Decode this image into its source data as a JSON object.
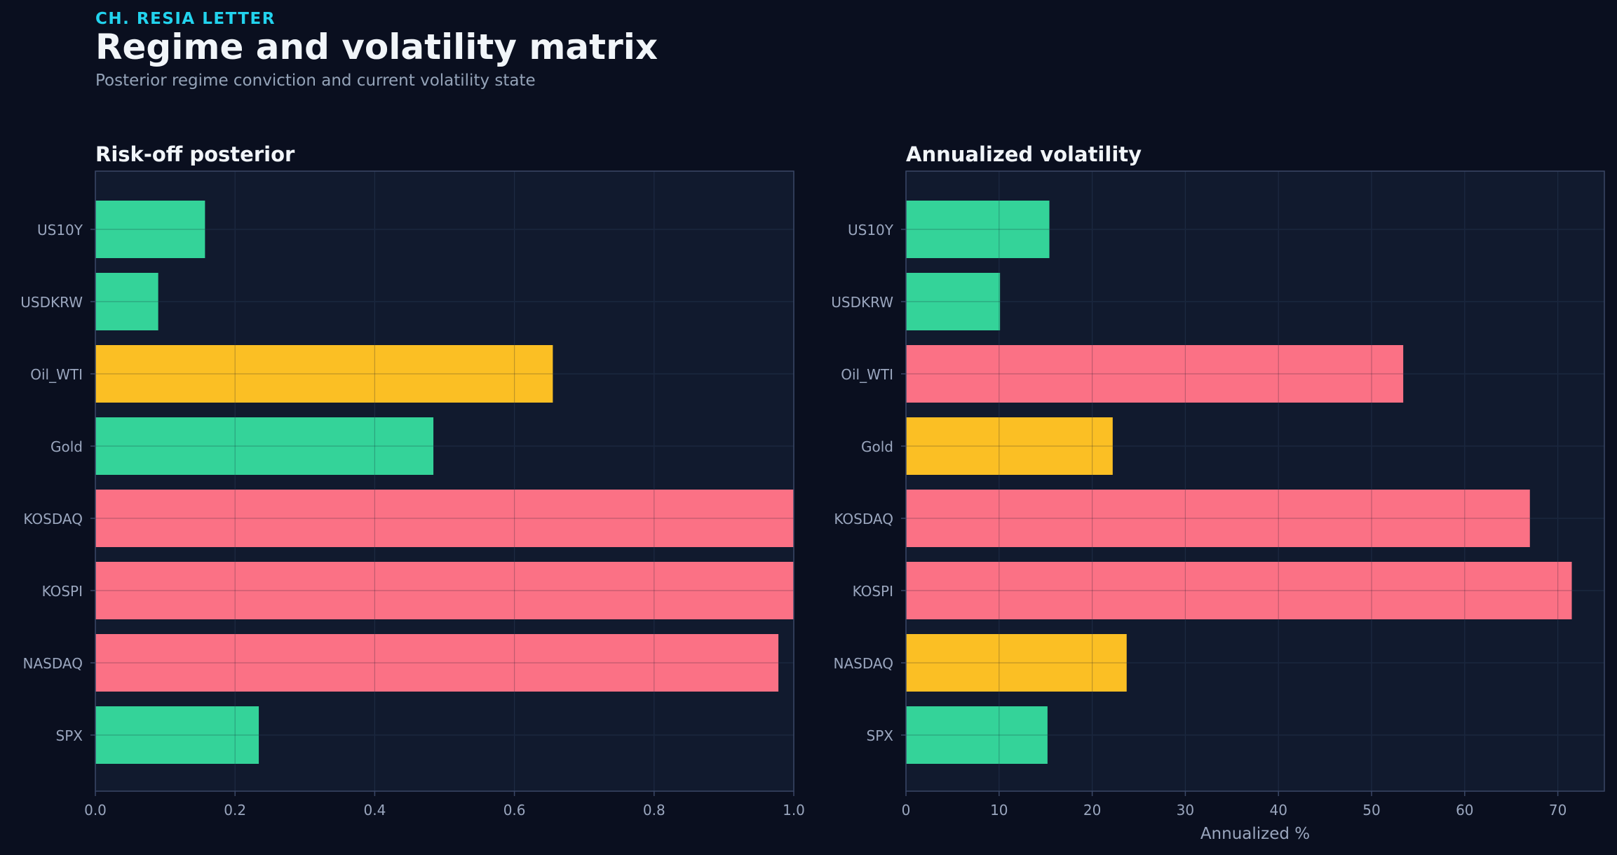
{
  "header": {
    "kicker": "CH. RESIA LETTER",
    "title": "Regime and volatility matrix",
    "subtitle": "Posterior regime conviction and current volatility state"
  },
  "colors": {
    "background": "#0a0f1f",
    "panel": "#111a2e",
    "grid": "#22304a",
    "spine": "#3a4766",
    "tick_text": "#9aa6be",
    "title_text": "#f1f5f9",
    "green": "#34d399",
    "yellow": "#fbbf24",
    "red": "#fb7185"
  },
  "chart_data": [
    {
      "type": "bar",
      "orientation": "horizontal",
      "title": "Risk-off posterior",
      "xlabel": "",
      "categories": [
        "US10Y",
        "USDKRW",
        "Oil_WTI",
        "Gold",
        "KOSDAQ",
        "KOSPI",
        "NASDAQ",
        "SPX"
      ],
      "values": [
        0.157,
        0.09,
        0.655,
        0.484,
        1.0,
        1.0,
        0.978,
        0.234
      ],
      "bar_colors": [
        "green",
        "green",
        "yellow",
        "green",
        "red",
        "red",
        "red",
        "green"
      ],
      "xlim": [
        0,
        1.0
      ],
      "xticks": [
        0,
        0.2,
        0.4,
        0.6,
        0.8,
        1.0
      ],
      "xtick_labels": [
        "0.0",
        "0.2",
        "0.4",
        "0.6",
        "0.8",
        "1.0"
      ],
      "grid": true
    },
    {
      "type": "bar",
      "orientation": "horizontal",
      "title": "Annualized volatility",
      "xlabel": "Annualized %",
      "categories": [
        "US10Y",
        "USDKRW",
        "Oil_WTI",
        "Gold",
        "KOSDAQ",
        "KOSPI",
        "NASDAQ",
        "SPX"
      ],
      "values": [
        15.4,
        10.1,
        53.4,
        22.2,
        67.0,
        71.5,
        23.7,
        15.2
      ],
      "bar_colors": [
        "green",
        "green",
        "red",
        "yellow",
        "red",
        "red",
        "yellow",
        "green"
      ],
      "xlim": [
        0,
        75
      ],
      "xticks": [
        0,
        10,
        20,
        30,
        40,
        50,
        60,
        70
      ],
      "xtick_labels": [
        "0",
        "10",
        "20",
        "30",
        "40",
        "50",
        "60",
        "70"
      ],
      "grid": true
    }
  ]
}
